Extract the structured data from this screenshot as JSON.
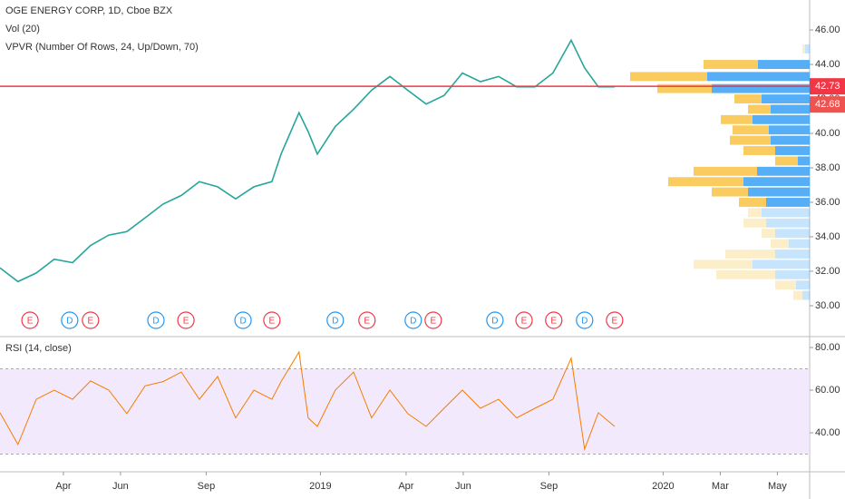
{
  "chart_data": [
    {
      "type": "line",
      "title": "OGE ENERGY CORP, 1D, Cboe BZX",
      "subtitle": "Vol (20)",
      "indicator": "VPVR (Number Of Rows, 24, Up/Down, 70)",
      "x": [
        0.78,
        1.41,
        2.05,
        2.68,
        3.32,
        3.95,
        4.59,
        5.22,
        5.86,
        6.49,
        7.13,
        7.76,
        8.4,
        9.03,
        9.67,
        10.3,
        10.62,
        11.25,
        11.57,
        11.89,
        12.52,
        13.16,
        13.79,
        14.43,
        15.06,
        15.7,
        16.33,
        16.97,
        17.6,
        18.24,
        18.87,
        19.51,
        20.14,
        20.78,
        21.25,
        21.73,
        22.3
      ],
      "series": [
        {
          "name": "OGE",
          "color": "#26a69a",
          "values": [
            32.2,
            31.4,
            31.9,
            32.7,
            32.5,
            33.5,
            34.1,
            34.3,
            35.1,
            35.9,
            36.4,
            37.2,
            36.9,
            36.2,
            36.9,
            37.2,
            38.8,
            41.2,
            40.1,
            38.8,
            40.4,
            41.4,
            42.5,
            43.3,
            42.5,
            41.7,
            42.2,
            43.5,
            43.0,
            43.3,
            42.7,
            42.7,
            43.5,
            45.4,
            43.8,
            42.7,
            42.7
          ]
        }
      ],
      "xlim": [
        0.78,
        29.13
      ],
      "ylim": [
        28.26,
        47.74
      ],
      "yticks": [
        {
          "value": 30,
          "label": "30.00"
        },
        {
          "value": 32,
          "label": "32.00"
        },
        {
          "value": 34,
          "label": "34.00"
        },
        {
          "value": 36,
          "label": "36.00"
        },
        {
          "value": 38,
          "label": "38.00"
        },
        {
          "value": 40,
          "label": "40.00"
        },
        {
          "value": 42,
          "label": "42.00"
        },
        {
          "value": 44,
          "label": "44.00"
        },
        {
          "value": 46,
          "label": "46.00"
        }
      ],
      "price_lines": [
        {
          "value": 42.73,
          "label": "42.73",
          "color": "#f23645"
        },
        {
          "value": 42.68,
          "label": "42.68",
          "color": "#ef5350"
        }
      ],
      "events": {
        "x": [
          1.83,
          3.22,
          3.95,
          6.24,
          7.29,
          9.29,
          10.3,
          12.52,
          13.63,
          15.25,
          15.95,
          18.11,
          19.13,
          20.17,
          21.25,
          22.3
        ],
        "labels": [
          "E",
          "D",
          "E",
          "D",
          "E",
          "D",
          "E",
          "D",
          "E",
          "D",
          "E",
          "D",
          "E",
          "E",
          "D",
          "E"
        ],
        "colors": {
          "E": "#f23645",
          "D": "#2196f3"
        }
      },
      "volume_profile": {
        "prices": [
          30.6,
          31.2,
          31.8,
          32.4,
          33.0,
          33.6,
          34.2,
          34.8,
          35.4,
          36.0,
          36.6,
          37.2,
          37.8,
          38.4,
          39.0,
          39.6,
          40.2,
          40.8,
          41.4,
          42.0,
          42.6,
          43.3,
          44.0,
          44.9
        ],
        "up": [
          8,
          15,
          38,
          63,
          38,
          23,
          38,
          48,
          53,
          48,
          68,
          73,
          58,
          13,
          38,
          43,
          45,
          63,
          43,
          53,
          108,
          113,
          57,
          5
        ],
        "down": [
          10,
          23,
          65,
          65,
          55,
          20,
          15,
          25,
          15,
          30,
          40,
          83,
          70,
          25,
          35,
          45,
          40,
          35,
          25,
          30,
          60,
          85,
          60,
          3
        ],
        "xlim": [
          0,
          200
        ],
        "value_area": [
          35.7,
          44.5
        ],
        "up_color": "#42a5f5",
        "down_color": "#f9c74f"
      }
    },
    {
      "type": "line",
      "title": "RSI (14, close)",
      "x": [
        0.78,
        1.41,
        2.05,
        2.68,
        3.32,
        3.95,
        4.59,
        5.22,
        5.86,
        6.49,
        7.13,
        7.76,
        8.4,
        9.03,
        9.67,
        10.3,
        10.62,
        11.25,
        11.57,
        11.89,
        12.52,
        13.16,
        13.79,
        14.43,
        15.06,
        15.7,
        16.33,
        16.97,
        17.6,
        18.24,
        18.87,
        19.51,
        20.14,
        20.78,
        21.25,
        21.73,
        22.3
      ],
      "series": [
        {
          "name": "RSI",
          "color": "#f57c00",
          "values": [
            49.4,
            34.5,
            55.7,
            60,
            55.7,
            64.3,
            60,
            49,
            62,
            64,
            68.5,
            55.7,
            66.4,
            47,
            60,
            55.7,
            64,
            77.9,
            47,
            43,
            60,
            68.5,
            47,
            60,
            49,
            43,
            51.5,
            60,
            51.5,
            55.7,
            47,
            51.5,
            55.7,
            75,
            32.3,
            49.4,
            43
          ]
        }
      ],
      "xlim": [
        0.78,
        29.13
      ],
      "ylim": [
        21.7,
        84.7
      ],
      "yticks": [
        {
          "value": 40,
          "label": "40.00"
        },
        {
          "value": 60,
          "label": "60.00"
        },
        {
          "value": 80,
          "label": "80.00"
        }
      ],
      "band": [
        30,
        70
      ],
      "xticks": [
        {
          "value": 3,
          "label": "Apr"
        },
        {
          "value": 5,
          "label": "Jun"
        },
        {
          "value": 8,
          "label": "Sep"
        },
        {
          "value": 12,
          "label": "2019"
        },
        {
          "value": 15,
          "label": "Apr"
        },
        {
          "value": 17,
          "label": "Jun"
        },
        {
          "value": 20,
          "label": "Sep"
        },
        {
          "value": 24,
          "label": "2020"
        },
        {
          "value": 26,
          "label": "Mar"
        },
        {
          "value": 28,
          "label": "May"
        }
      ]
    }
  ]
}
